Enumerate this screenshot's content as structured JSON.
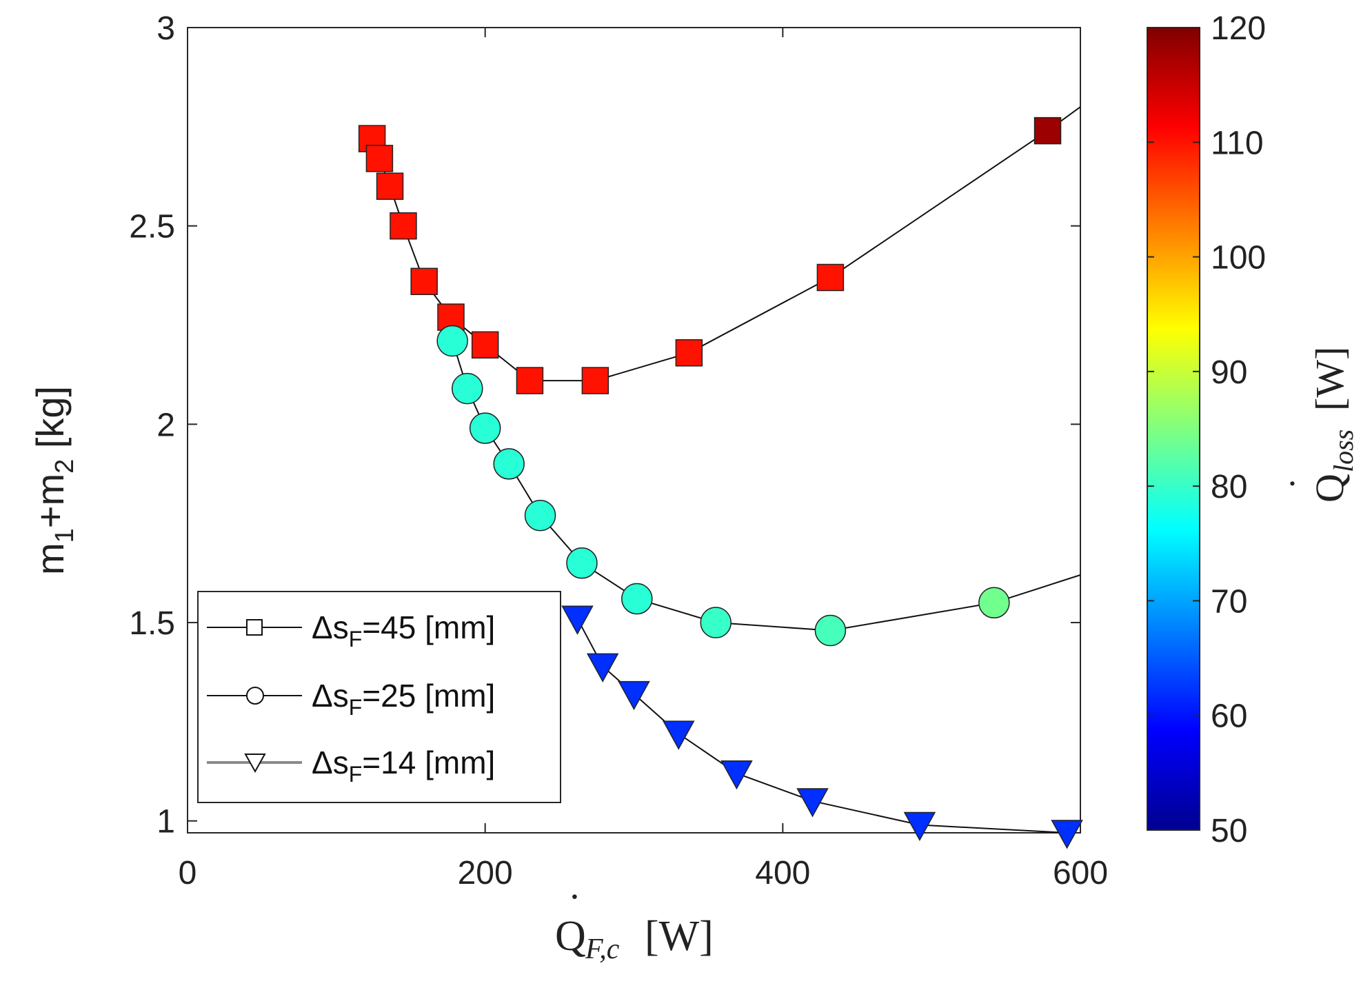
{
  "chart_data": {
    "type": "scatter",
    "title": "",
    "xlabel": {
      "main": "Q",
      "sub": "F,c",
      "unit": "[W]"
    },
    "ylabel": {
      "t1": "m",
      "s1": "1",
      "t2": "+m",
      "s2": "2",
      "t3": " [kg]"
    },
    "xlim": [
      0,
      600
    ],
    "ylim": [
      0.97,
      3.0
    ],
    "xticks": [
      0,
      200,
      400,
      600
    ],
    "yticks": [
      1,
      1.5,
      2,
      2.5,
      3
    ],
    "ytick_labels": [
      "1",
      "1.5",
      "2",
      "2.5",
      "3"
    ],
    "grid": false,
    "colorbar": {
      "label": {
        "main": "Q",
        "sub": "loss",
        "unit": "[W]"
      },
      "range": [
        50,
        120
      ],
      "ticks": [
        50,
        60,
        70,
        80,
        90,
        100,
        110,
        120
      ],
      "colormap": "jet"
    },
    "legend": {
      "position": "bottom-left",
      "entries": [
        {
          "pre": "Δs",
          "sub": "F",
          "post": "=45 [mm]",
          "marker": "square"
        },
        {
          "pre": "Δs",
          "sub": "F",
          "post": "=25 [mm]",
          "marker": "circle"
        },
        {
          "pre": "Δs",
          "sub": "F",
          "post": "=14 [mm]",
          "marker": "triangle-down"
        }
      ]
    },
    "series": [
      {
        "name": "Δs_F=45 [mm]",
        "marker": "square",
        "points": [
          {
            "x": 124,
            "y": 2.72,
            "c": 110
          },
          {
            "x": 129,
            "y": 2.67,
            "c": 110
          },
          {
            "x": 136,
            "y": 2.6,
            "c": 110
          },
          {
            "x": 145,
            "y": 2.5,
            "c": 110
          },
          {
            "x": 159,
            "y": 2.36,
            "c": 110
          },
          {
            "x": 177,
            "y": 2.27,
            "c": 110
          },
          {
            "x": 200,
            "y": 2.2,
            "c": 110
          },
          {
            "x": 230,
            "y": 2.11,
            "c": 110
          },
          {
            "x": 274,
            "y": 2.11,
            "c": 110
          },
          {
            "x": 337,
            "y": 2.18,
            "c": 110
          },
          {
            "x": 432,
            "y": 2.37,
            "c": 110
          },
          {
            "x": 578,
            "y": 2.74,
            "c": 118
          }
        ],
        "line_extend": {
          "x": 600,
          "y": 2.8
        }
      },
      {
        "name": "Δs_F=25 [mm]",
        "marker": "circle",
        "points": [
          {
            "x": 178,
            "y": 2.21,
            "c": 79
          },
          {
            "x": 188,
            "y": 2.09,
            "c": 79
          },
          {
            "x": 200,
            "y": 1.99,
            "c": 79
          },
          {
            "x": 216,
            "y": 1.9,
            "c": 79
          },
          {
            "x": 237,
            "y": 1.77,
            "c": 79
          },
          {
            "x": 265,
            "y": 1.65,
            "c": 79
          },
          {
            "x": 302,
            "y": 1.56,
            "c": 79
          },
          {
            "x": 355,
            "y": 1.5,
            "c": 80
          },
          {
            "x": 432,
            "y": 1.48,
            "c": 81
          },
          {
            "x": 542,
            "y": 1.55,
            "c": 84
          }
        ],
        "line_extend": {
          "x": 600,
          "y": 1.62
        }
      },
      {
        "name": "Δs_F=14 [mm]",
        "marker": "triangle-down",
        "points": [
          {
            "x": 262,
            "y": 1.51,
            "c": 62
          },
          {
            "x": 279,
            "y": 1.39,
            "c": 62
          },
          {
            "x": 300,
            "y": 1.32,
            "c": 62
          },
          {
            "x": 330,
            "y": 1.22,
            "c": 62
          },
          {
            "x": 369,
            "y": 1.12,
            "c": 62
          },
          {
            "x": 420,
            "y": 1.05,
            "c": 62
          },
          {
            "x": 492,
            "y": 0.99,
            "c": 62
          },
          {
            "x": 591,
            "y": 0.97,
            "c": 62
          }
        ]
      }
    ]
  }
}
